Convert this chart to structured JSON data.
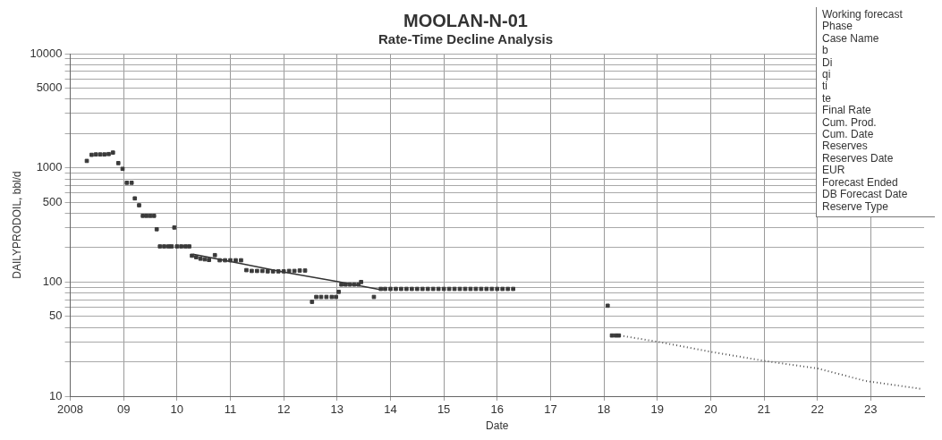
{
  "chart_data": {
    "type": "scatter",
    "title": "MOOLAN-N-01",
    "subtitle": "Rate-Time Decline Analysis",
    "xlabel": "Date",
    "ylabel": "DAILYPRODOIL, bbl/d",
    "log": true,
    "grid": true,
    "legend": false,
    "xlim": [
      2008,
      2024
    ],
    "xticks": [
      2008,
      {
        "value": 2009,
        "label": "09"
      },
      {
        "value": 2010,
        "label": "10"
      },
      {
        "value": 2011,
        "label": "11"
      },
      {
        "value": 2012,
        "label": "12"
      },
      {
        "value": 2013,
        "label": "13"
      },
      {
        "value": 2014,
        "label": "14"
      },
      {
        "value": 2015,
        "label": "15"
      },
      {
        "value": 2016,
        "label": "16"
      },
      {
        "value": 2017,
        "label": "17"
      },
      {
        "value": 2018,
        "label": "18"
      },
      {
        "value": 2019,
        "label": "19"
      },
      {
        "value": 2020,
        "label": "20"
      },
      {
        "value": 2021,
        "label": "21"
      },
      {
        "value": 2022,
        "label": "22"
      },
      {
        "value": 2023,
        "label": "23"
      }
    ],
    "ylim": [
      10,
      10000
    ],
    "yticks": [
      10,
      {
        "value": 20,
        "label": null
      },
      {
        "value": 30,
        "label": null
      },
      {
        "value": 40,
        "label": null
      },
      50,
      {
        "value": 60,
        "label": null
      },
      {
        "value": 70,
        "label": null
      },
      {
        "value": 80,
        "label": null
      },
      {
        "value": 90,
        "label": null
      },
      100,
      {
        "value": 200,
        "label": null
      },
      {
        "value": 300,
        "label": null
      },
      {
        "value": 400,
        "label": null
      },
      500,
      {
        "value": 600,
        "label": null
      },
      {
        "value": 700,
        "label": null
      },
      {
        "value": 800,
        "label": null
      },
      {
        "value": 900,
        "label": null
      },
      1000,
      {
        "value": 2000,
        "label": null
      },
      {
        "value": 3000,
        "label": null
      },
      {
        "value": 4000,
        "label": null
      },
      5000,
      {
        "value": 6000,
        "label": null
      },
      {
        "value": 7000,
        "label": null
      },
      {
        "value": 8000,
        "label": null
      },
      {
        "value": 9000,
        "label": null
      },
      10000
    ],
    "annotations": [
      "Working forecast",
      "Phase",
      "Case Name",
      "b",
      "Di",
      "qi",
      "ti",
      "te",
      "Final Rate",
      "Cum. Prod.",
      "Cum. Date",
      "Reserves",
      "Reserves Date",
      "EUR",
      "Forecast Ended",
      "DB Forecast Date",
      "Reserve Type"
    ],
    "series": [
      {
        "marker": "square",
        "color": "#3a3a3a",
        "x": [
          2008.31,
          2008.4,
          2008.48,
          2008.56,
          2008.64,
          2008.72,
          2008.8,
          2008.9,
          2008.98,
          2009.06,
          2009.15,
          2009.21,
          2009.29,
          2009.36,
          2009.43,
          2009.5,
          2009.57,
          2009.62,
          2009.68,
          2009.76,
          2009.84,
          2009.9,
          2009.95,
          2010,
          2010.08,
          2010.16,
          2010.23,
          2010.28,
          2010.36,
          2010.44,
          2010.52,
          2010.6,
          2010.71,
          2010.8,
          2010.9,
          2011,
          2011.1,
          2011.2,
          2011.3,
          2011.4,
          2011.5,
          2011.6,
          2011.7,
          2011.8,
          2011.9,
          2012,
          2012.1,
          2012.2,
          2012.3,
          2012.4,
          2012.53,
          2012.61,
          2012.7,
          2012.8,
          2012.9,
          2012.98,
          2013.03,
          2013.08,
          2013.16,
          2013.24,
          2013.32,
          2013.4,
          2013.45,
          2013.69,
          2013.82,
          2013.9,
          2014,
          2014.1,
          2014.2,
          2014.3,
          2014.4,
          2014.5,
          2014.6,
          2014.7,
          2014.8,
          2014.9,
          2015,
          2015.1,
          2015.2,
          2015.3,
          2015.4,
          2015.5,
          2015.6,
          2015.7,
          2015.8,
          2015.9,
          2016,
          2016.1,
          2016.2,
          2016.3,
          2018.07,
          2018.15,
          2018.22,
          2018.28
        ],
        "values": [
          1150,
          1300,
          1310,
          1310,
          1310,
          1320,
          1360,
          1100,
          980,
          740,
          740,
          540,
          470,
          380,
          380,
          380,
          380,
          290,
          205,
          205,
          205,
          205,
          300,
          205,
          205,
          205,
          205,
          170,
          165,
          160,
          158,
          156,
          172,
          155,
          155,
          155,
          155,
          155,
          127,
          125,
          125,
          125,
          124,
          124,
          124,
          124,
          125,
          125,
          126,
          126,
          67,
          74,
          74,
          74,
          74,
          74,
          82,
          95,
          95,
          95,
          95,
          95,
          100,
          74,
          87,
          87,
          87,
          87,
          87,
          87,
          87,
          87,
          87,
          87,
          87,
          87,
          87,
          87,
          87,
          87,
          87,
          87,
          87,
          87,
          87,
          87,
          87,
          87,
          87,
          87,
          62,
          34,
          34,
          34
        ]
      },
      {
        "type": "line",
        "marker": "none",
        "line_style": "solid",
        "color": "#333333",
        "x": [
          2010.3,
          2011.2,
          2012,
          2013,
          2013.8
        ],
        "values": [
          175,
          145,
          122,
          101,
          86
        ]
      },
      {
        "type": "line",
        "marker": "none",
        "line_style": "dotted",
        "color": "#555555",
        "x": [
          2018.3,
          2019,
          2020,
          2021,
          2022,
          2022.9,
          2023.94
        ],
        "values": [
          34,
          30,
          24.5,
          20.4,
          17.5,
          13.6,
          11.6
        ]
      }
    ]
  }
}
